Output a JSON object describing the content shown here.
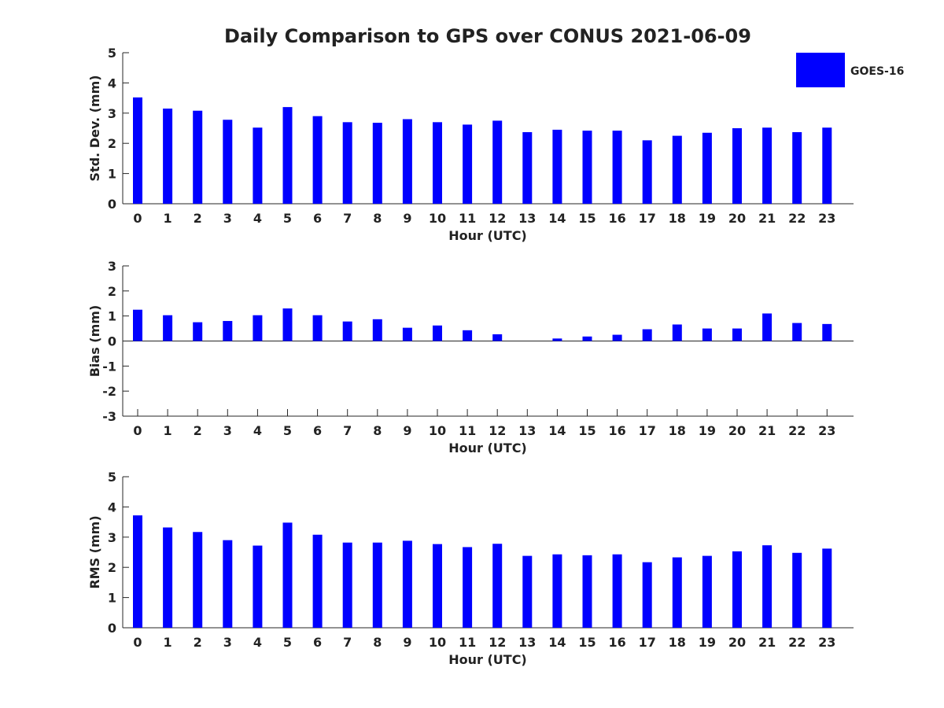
{
  "chart_data": {
    "title": "Daily Comparison to GPS over CONUS 2021-06-09",
    "type": "bar",
    "legend": {
      "entries": [
        "GOES-16"
      ],
      "placement": "top-right"
    },
    "series_color": "#0000ff",
    "hours": [
      "0",
      "1",
      "2",
      "3",
      "4",
      "5",
      "6",
      "7",
      "8",
      "9",
      "10",
      "11",
      "12",
      "13",
      "14",
      "15",
      "16",
      "17",
      "18",
      "19",
      "20",
      "21",
      "22",
      "23"
    ],
    "panels": [
      {
        "name": "std-dev",
        "ylabel": "Std. Dev. (mm)",
        "xlabel": "Hour (UTC)",
        "ylim": [
          0,
          5
        ],
        "yticks": [
          "0",
          "1",
          "2",
          "3",
          "4",
          "5"
        ],
        "values": [
          3.52,
          3.15,
          3.08,
          2.78,
          2.52,
          3.2,
          2.9,
          2.7,
          2.68,
          2.8,
          2.7,
          2.62,
          2.75,
          2.37,
          2.45,
          2.42,
          2.42,
          2.1,
          2.25,
          2.35,
          2.5,
          2.52,
          2.37,
          2.52
        ]
      },
      {
        "name": "bias",
        "ylabel": "Bias (mm)",
        "xlabel": "Hour (UTC)",
        "ylim": [
          -3,
          3
        ],
        "yticks": [
          "-3",
          "-2",
          "-1",
          "0",
          "1",
          "2",
          "3"
        ],
        "values": [
          1.25,
          1.03,
          0.75,
          0.8,
          1.03,
          1.3,
          1.03,
          0.78,
          0.87,
          0.53,
          0.62,
          0.43,
          0.27,
          0.0,
          0.1,
          0.18,
          0.25,
          0.47,
          0.66,
          0.5,
          0.5,
          1.1,
          0.72,
          0.68
        ]
      },
      {
        "name": "rms",
        "ylabel": "RMS (mm)",
        "xlabel": "Hour (UTC)",
        "ylim": [
          0,
          5
        ],
        "yticks": [
          "0",
          "1",
          "2",
          "3",
          "4",
          "5"
        ],
        "values": [
          3.72,
          3.32,
          3.17,
          2.9,
          2.72,
          3.48,
          3.08,
          2.82,
          2.82,
          2.88,
          2.77,
          2.67,
          2.78,
          2.38,
          2.43,
          2.4,
          2.43,
          2.17,
          2.33,
          2.38,
          2.53,
          2.73,
          2.48,
          2.62
        ]
      }
    ]
  }
}
